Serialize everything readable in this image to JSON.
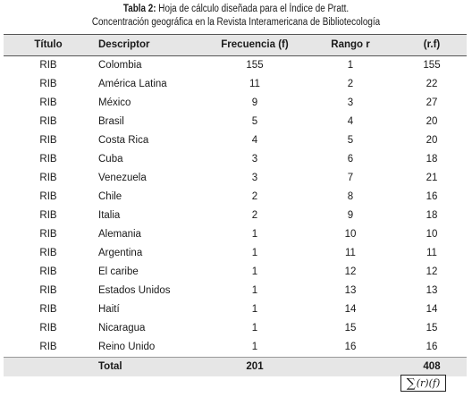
{
  "caption": {
    "label": "Tabla 2:",
    "line1": "Hoja de cálculo diseñada para el Índice de Pratt.",
    "line2": "Concentración geográfica en la Revista Interamericana de Bibliotecología"
  },
  "table": {
    "headers": [
      "Título",
      "Descriptor",
      "Frecuencia (f)",
      "Rango r",
      "(r.f)"
    ],
    "rows": [
      [
        "RIB",
        "Colombia",
        "155",
        "1",
        "155"
      ],
      [
        "RIB",
        "América Latina",
        "11",
        "2",
        "22"
      ],
      [
        "RIB",
        "México",
        "9",
        "3",
        "27"
      ],
      [
        "RIB",
        "Brasil",
        "5",
        "4",
        "20"
      ],
      [
        "RIB",
        "Costa Rica",
        "4",
        "5",
        "20"
      ],
      [
        "RIB",
        "Cuba",
        "3",
        "6",
        "18"
      ],
      [
        "RIB",
        "Venezuela",
        "3",
        "7",
        "21"
      ],
      [
        "RIB",
        "Chile",
        "2",
        "8",
        "16"
      ],
      [
        "RIB",
        "Italia",
        "2",
        "9",
        "18"
      ],
      [
        "RIB",
        "Alemania",
        "1",
        "10",
        "10"
      ],
      [
        "RIB",
        "Argentina",
        "1",
        "11",
        "11"
      ],
      [
        "RIB",
        "El caribe",
        "1",
        "12",
        "12"
      ],
      [
        "RIB",
        "Estados Unidos",
        "1",
        "13",
        "13"
      ],
      [
        "RIB",
        "Haití",
        "1",
        "14",
        "14"
      ],
      [
        "RIB",
        "Nicaragua",
        "1",
        "15",
        "15"
      ],
      [
        "RIB",
        "Reino Unido",
        "1",
        "16",
        "16"
      ]
    ],
    "total": {
      "label": "Total",
      "frecuencia": "201",
      "rf": "408"
    }
  },
  "formula": {
    "sigma": "∑",
    "text": "(r)(f)"
  }
}
